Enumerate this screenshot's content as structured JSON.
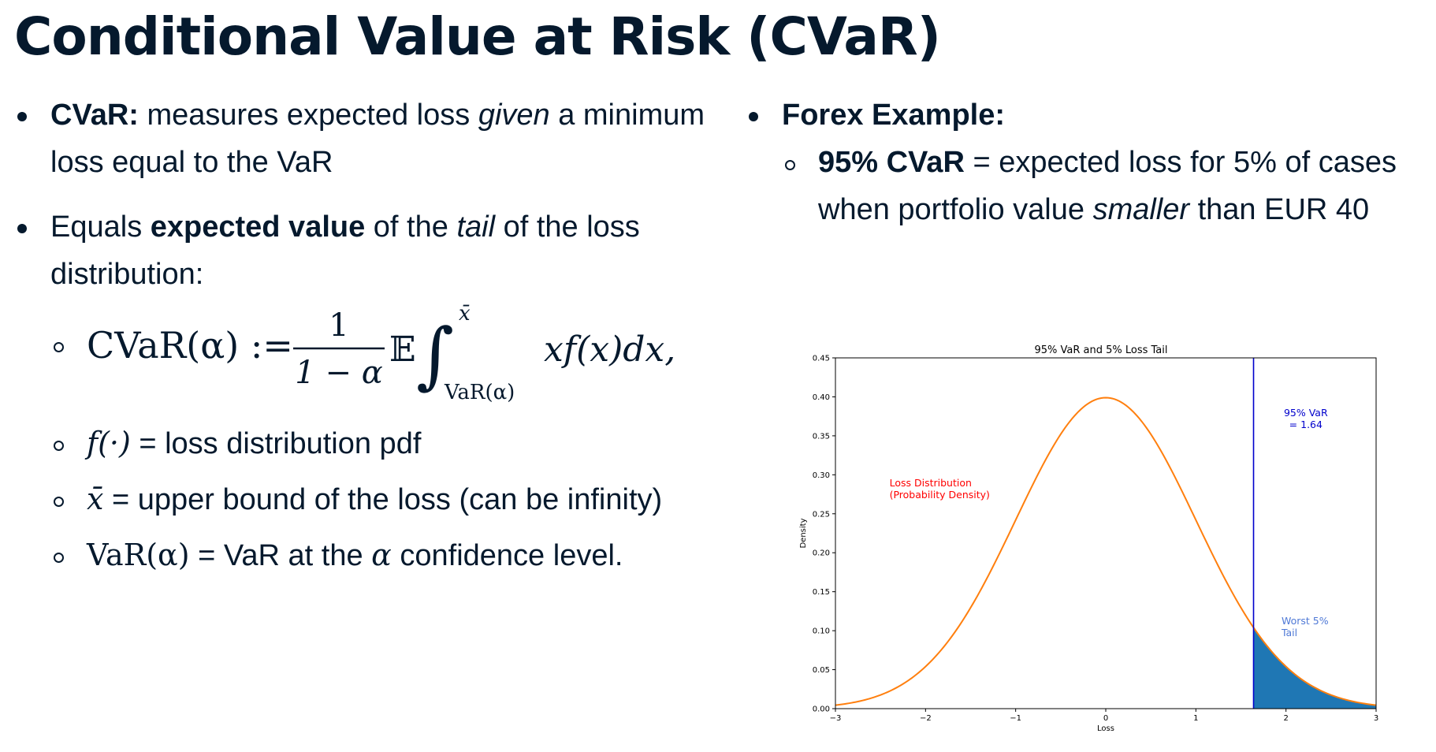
{
  "title": "Conditional Value at Risk (CVaR)",
  "left": {
    "b1_bold": "CVaR:",
    "b1_t1": " measures expected loss ",
    "b1_ital": "given",
    "b1_t2": " a minimum loss equal to the VaR",
    "b2_t1": "Equals ",
    "b2_bold": "expected value",
    "b2_t2": " of the ",
    "b2_ital": "tail",
    "b2_t3": " of the loss distribution:",
    "formula": {
      "lhs": "CVaR(α) :=",
      "num": "1",
      "den": "1 − α",
      "exp": "𝔼",
      "integral": "∫",
      "upper": "x̄",
      "lower": "VaR(α)",
      "integrand": "xf(x)dx,"
    },
    "s2_math": "f(·)",
    "s2_text": " = loss distribution pdf",
    "s3_math": "x̄",
    "s3_text": " = upper bound of the loss (can be infinity)",
    "s4_math": "VaR(α)",
    "s4_t1": " = VaR at the ",
    "s4_alpha": "α",
    "s4_t2": " confidence level."
  },
  "right": {
    "b1_bold": "Forex Example:",
    "s1_bold": "95% CVaR",
    "s1_t1": " = expected loss for 5% of cases when portfolio value ",
    "s1_ital": "smaller",
    "s1_t2": " than EUR 40"
  },
  "chart_data": {
    "type": "line",
    "title": "95% VaR and 5% Loss Tail",
    "xlabel": "Loss",
    "ylabel": "Density",
    "xlim": [
      -3,
      3
    ],
    "ylim": [
      0,
      0.45
    ],
    "xticks": [
      -3,
      -2,
      -1,
      0,
      1,
      2,
      3
    ],
    "xtick_labels": [
      "−3",
      "−2",
      "−1",
      "0",
      "1",
      "2",
      "3"
    ],
    "yticks": [
      0.0,
      0.05,
      0.1,
      0.15,
      0.2,
      0.25,
      0.3,
      0.35,
      0.4,
      0.45
    ],
    "ytick_labels": [
      "0.00",
      "0.05",
      "0.10",
      "0.15",
      "0.20",
      "0.25",
      "0.30",
      "0.35",
      "0.40",
      "0.45"
    ],
    "series": [
      {
        "x": [
          -3,
          -2.5,
          -2,
          -1.5,
          -1,
          -0.5,
          0,
          0.5,
          1,
          1.5,
          2,
          2.5,
          3
        ],
        "values": [
          0.0044,
          0.0175,
          0.054,
          0.1295,
          0.242,
          0.3521,
          0.3989,
          0.3521,
          0.242,
          0.1295,
          0.054,
          0.0175,
          0.0044
        ]
      }
    ],
    "var_line": 1.64,
    "tail_range": [
      1.64,
      3
    ],
    "annotations": {
      "dist_line1": "Loss Distribution",
      "dist_line2": "(Probability Density)",
      "var_line1": "95% VaR",
      "var_line2": "= 1.64",
      "tail_line1": "Worst 5%",
      "tail_line2": "Tail"
    },
    "colors": {
      "curve": "#ff7f0e",
      "var_line": "#0000cc",
      "tail_fill": "#1f77b4",
      "dist_text": "#ff0000",
      "var_text": "#0000cc",
      "tail_text": "#4f79d6"
    }
  }
}
